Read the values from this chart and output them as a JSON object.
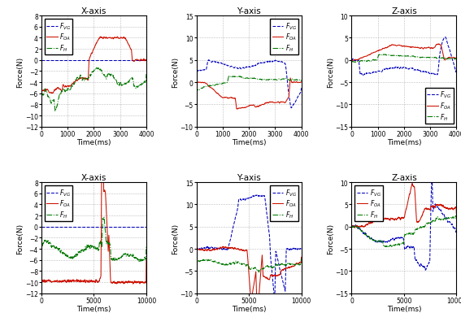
{
  "top_row": {
    "x_axis": {
      "title": "X-axis",
      "xlabel": "Time(ms)",
      "ylabel": "Force(N)",
      "xlim": [
        0,
        4000
      ],
      "ylim": [
        -12,
        8
      ],
      "yticks": [
        -12,
        -10,
        -8,
        -6,
        -4,
        -2,
        0,
        2,
        4,
        6,
        8
      ],
      "xticks": [
        0,
        1000,
        2000,
        3000,
        4000
      ],
      "legend_loc": "upper left"
    },
    "y_axis": {
      "title": "Y-axis",
      "xlabel": "Time(ms)",
      "ylabel": "Force(N)",
      "xlim": [
        0,
        4000
      ],
      "ylim": [
        -10,
        15
      ],
      "yticks": [
        -10,
        -5,
        0,
        5,
        10,
        15
      ],
      "xticks": [
        0,
        1000,
        2000,
        3000,
        4000
      ],
      "legend_loc": "upper right"
    },
    "z_axis": {
      "title": "Z-axis",
      "xlabel": "Time(ms)",
      "ylabel": "Force(N)",
      "xlim": [
        0,
        4000
      ],
      "ylim": [
        -15,
        10
      ],
      "yticks": [
        -15,
        -10,
        -5,
        0,
        5,
        10
      ],
      "xticks": [
        0,
        1000,
        2000,
        3000,
        4000
      ],
      "legend_loc": "lower right"
    }
  },
  "bottom_row": {
    "x_axis": {
      "title": "X-axis",
      "xlabel": "Time(ms)",
      "ylabel": "Force(N)",
      "xlim": [
        0,
        10000
      ],
      "ylim": [
        -12,
        8
      ],
      "yticks": [
        -12,
        -10,
        -8,
        -6,
        -4,
        -2,
        0,
        2,
        4,
        6,
        8
      ],
      "xticks": [
        0,
        5000,
        10000
      ],
      "legend_loc": "upper left"
    },
    "y_axis": {
      "title": "Y-axis",
      "xlabel": "Time(ms)",
      "ylabel": "Force(N)",
      "xlim": [
        0,
        10000
      ],
      "ylim": [
        -10,
        15
      ],
      "yticks": [
        -10,
        -5,
        0,
        5,
        10,
        15
      ],
      "xticks": [
        0,
        5000,
        10000
      ],
      "legend_loc": "upper right"
    },
    "z_axis": {
      "title": "Z-axis",
      "xlabel": "Time(ms)",
      "ylabel": "Force(N)",
      "xlim": [
        0,
        10000
      ],
      "ylim": [
        -15,
        10
      ],
      "yticks": [
        -15,
        -10,
        -5,
        0,
        5,
        10
      ],
      "xticks": [
        0,
        5000,
        10000
      ],
      "legend_loc": "upper left"
    }
  },
  "colors": {
    "FVG": "#0000bb",
    "FOA": "#cc1100",
    "FH": "#007700"
  },
  "legend_labels": [
    "$F_{VG}$",
    "$F_{OA}$",
    "$F_{H}$"
  ],
  "bg_color": "#ffffff",
  "grid_color": "#aaaaaa",
  "font_size": 7
}
